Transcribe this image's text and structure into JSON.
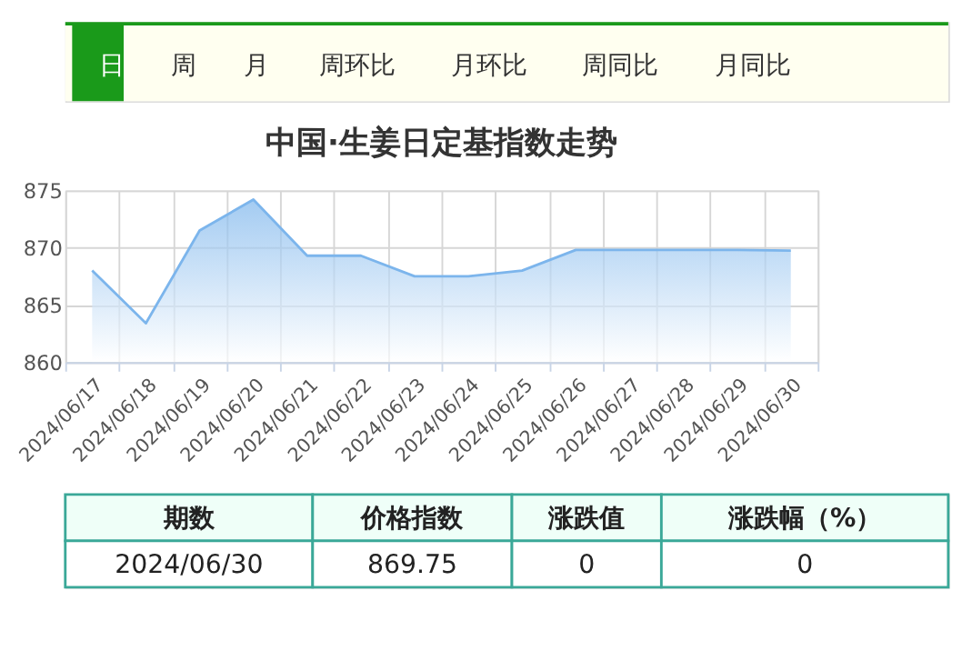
{
  "chart_data": {
    "type": "area",
    "title": "中国·生姜日定基指数走势",
    "categories": [
      "2024/06/17",
      "2024/06/18",
      "2024/06/19",
      "2024/06/20",
      "2024/06/21",
      "2024/06/22",
      "2024/06/23",
      "2024/06/24",
      "2024/06/25",
      "2024/06/26",
      "2024/06/27",
      "2024/06/28",
      "2024/06/29",
      "2024/06/30"
    ],
    "series": [
      {
        "color": "#7cb5ec",
        "values": [
          868.0,
          863.4,
          871.5,
          874.2,
          869.3,
          869.3,
          867.5,
          867.5,
          868.0,
          869.8,
          869.8,
          869.8,
          869.8,
          869.75
        ]
      }
    ],
    "ylim": [
      860,
      875
    ],
    "yticks": [
      860,
      865,
      870,
      875
    ],
    "grid": true,
    "marker": "none",
    "annotations": [
      "日",
      "周",
      "月",
      "周环比",
      "月环比",
      "周同比",
      "月同比",
      "期数",
      "价格指数",
      "涨跌值",
      "涨跌幅（%）",
      "2024/06/30",
      "869.75",
      "0",
      "0"
    ]
  }
}
